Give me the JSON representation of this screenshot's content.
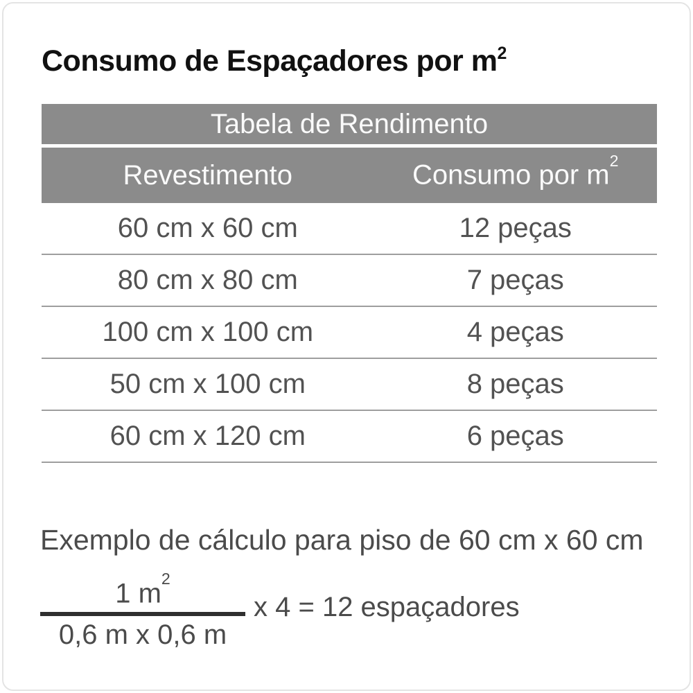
{
  "page": {
    "title_main": "Consumo de Espaçadores por m",
    "title_sup": "2"
  },
  "table": {
    "caption": "Tabela de Rendimento",
    "columns": {
      "left_label": "Revestimento",
      "right_label_main": "Consumo por m",
      "right_label_sup": "2"
    },
    "rows": [
      {
        "revestimento": "60 cm x 60 cm",
        "consumo": "12 peças"
      },
      {
        "revestimento": "80 cm x 80 cm",
        "consumo": "7 peças"
      },
      {
        "revestimento": "100 cm x 100 cm",
        "consumo": "4 peças"
      },
      {
        "revestimento": "50 cm x 100 cm",
        "consumo": "8 peças"
      },
      {
        "revestimento": "60 cm x 120 cm",
        "consumo": "6 peças"
      }
    ]
  },
  "example": {
    "heading": "Exemplo de cálculo para piso de 60 cm x 60 cm",
    "fraction": {
      "numerator_main": "1 m",
      "numerator_sup": "2",
      "denominator": "0,6 m x 0,6 m"
    },
    "result": "x 4 = 12 espaçadores"
  },
  "colors": {
    "band_bg": "#8b8b8b",
    "band_text": "#fafafa",
    "body_text": "#525252",
    "divider": "#9e9e9e",
    "title_text": "#111111",
    "bar_color": "#2f2f2f",
    "card_border": "#e4e4e4"
  }
}
